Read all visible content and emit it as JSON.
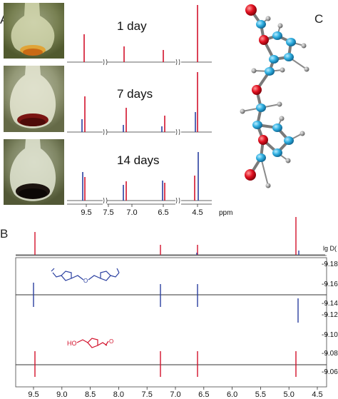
{
  "panels": {
    "a": {
      "label": "A",
      "conditions": [
        "1 day",
        "7 days",
        "14 days"
      ]
    },
    "b": {
      "label": "B"
    },
    "c": {
      "label": "C"
    }
  },
  "panel_a_axis": {
    "ticks": [
      "9.5",
      "7.5",
      "7.0",
      "6.5",
      "4.5"
    ],
    "unit": "ppm"
  },
  "panel_b": {
    "top_axis_label": "lg D(",
    "right_ticks": [
      "-9.18",
      "-9.16",
      "-9.14",
      "-9.12",
      "-9.10",
      "-9.08",
      "-9.06"
    ],
    "bottom_ticks": [
      "9.5",
      "9.0",
      "8.5",
      "8.0",
      "7.5",
      "7.0",
      "6.5",
      "6.0",
      "5.5",
      "5.0",
      "4.5"
    ],
    "structure_labels": {
      "hmf_ho": "HO",
      "dimer_o": "O",
      "hmf_o": "O"
    }
  },
  "colors": {
    "red": "#d2112b",
    "blue": "#2a3fa0",
    "atom_blue": "#29a8d8",
    "atom_red": "#e01020",
    "atom_grey": "#8a8a8a"
  }
}
